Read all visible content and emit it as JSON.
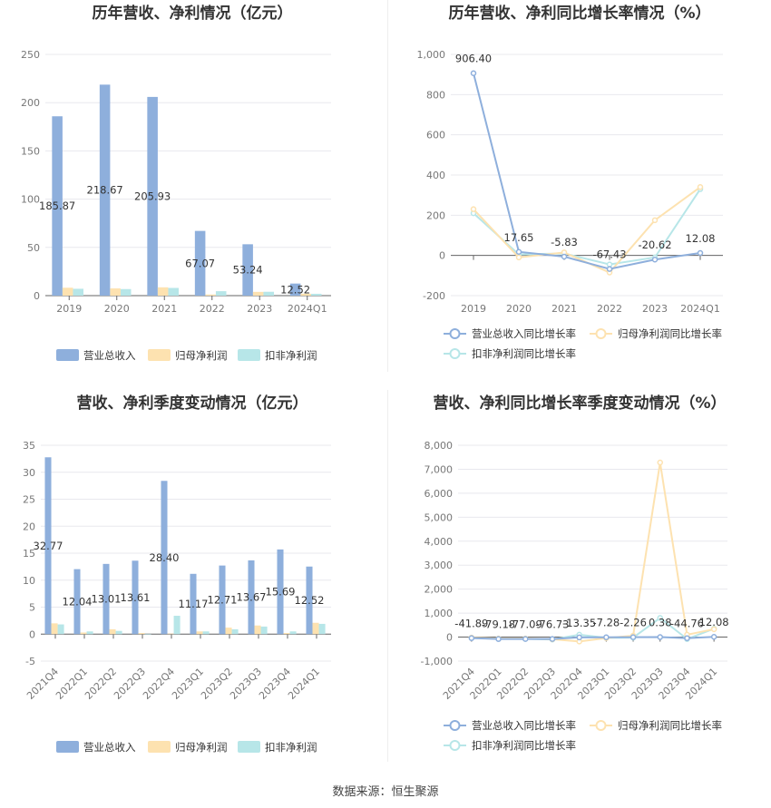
{
  "colors": {
    "revenue": "#8eafdc",
    "net": "#fde2b0",
    "deducted": "#b7e6e8",
    "grid": "#e8e8ee",
    "axis": "#666666"
  },
  "source": "数据来源：恒生聚源",
  "chart_data": [
    {
      "type": "bar",
      "title": "历年营收、净利情况（亿元）",
      "categories": [
        "2019",
        "2020",
        "2021",
        "2022",
        "2023",
        "2024Q1"
      ],
      "ylim": [
        0,
        250
      ],
      "yticks": [
        "0",
        "50",
        "100",
        "150",
        "200",
        "250"
      ],
      "series": [
        {
          "name": "营业总收入",
          "values": [
            185.87,
            218.67,
            205.93,
            67.07,
            53.24,
            12.52
          ],
          "labels": [
            "185.87",
            "218.67",
            "205.93",
            "67.07",
            "53.24",
            "12.52"
          ]
        },
        {
          "name": "归母净利润",
          "values": [
            8.2,
            7.5,
            8.6,
            1.2,
            3.9,
            2.0
          ]
        },
        {
          "name": "扣非净利润",
          "values": [
            7.1,
            6.8,
            8.0,
            4.6,
            4.0,
            1.9
          ]
        }
      ],
      "legend": "bottom"
    },
    {
      "type": "line",
      "title": "历年营收、净利同比增长率情况（%）",
      "categories": [
        "2019",
        "2020",
        "2021",
        "2022",
        "2023",
        "2024Q1"
      ],
      "ylim": [
        -200,
        1000
      ],
      "yticks": [
        "-200",
        "0",
        "200",
        "400",
        "600",
        "800",
        "1,000"
      ],
      "series": [
        {
          "name": "营业总收入同比增长率",
          "values": [
            906.4,
            17.65,
            -5.83,
            -67.43,
            -20.62,
            12.08
          ],
          "labels": [
            "906.40",
            "17.65",
            "-5.83",
            "-67.43",
            "-20.62",
            "12.08"
          ]
        },
        {
          "name": "归母净利润同比增长率",
          "values": [
            230,
            -10,
            15,
            -85,
            175,
            340
          ]
        },
        {
          "name": "扣非净利润同比增长率",
          "values": [
            210,
            5,
            10,
            -45,
            -10,
            330
          ]
        }
      ],
      "legend": "bottom"
    },
    {
      "type": "bar",
      "title": "营收、净利季度变动情况（亿元）",
      "categories": [
        "2021Q4",
        "2022Q1",
        "2022Q2",
        "2022Q3",
        "2022Q4",
        "2023Q1",
        "2023Q2",
        "2023Q3",
        "2023Q4",
        "2024Q1"
      ],
      "ylim": [
        -5,
        35
      ],
      "yticks": [
        "-5",
        "0",
        "5",
        "10",
        "15",
        "20",
        "25",
        "30",
        "35"
      ],
      "series": [
        {
          "name": "营业总收入",
          "values": [
            32.77,
            12.04,
            13.01,
            13.61,
            28.4,
            11.17,
            12.71,
            13.67,
            15.69,
            12.52
          ],
          "labels": [
            "32.77",
            "12.04",
            "13.01",
            "13.61",
            "28.40",
            "11.17",
            "12.71",
            "13.67",
            "15.69",
            "12.52"
          ]
        },
        {
          "name": "归母净利润",
          "values": [
            2.0,
            0.3,
            0.9,
            0.2,
            0.1,
            0.5,
            1.2,
            1.6,
            0.2,
            2.1
          ]
        },
        {
          "name": "扣非净利润",
          "values": [
            1.8,
            0.5,
            0.6,
            -0.1,
            3.4,
            0.5,
            0.9,
            1.4,
            0.5,
            1.9
          ]
        }
      ],
      "legend": "bottom"
    },
    {
      "type": "line",
      "title": "营收、净利同比增长率季度变动情况（%）",
      "categories": [
        "2021Q4",
        "2022Q1",
        "2022Q2",
        "2022Q3",
        "2022Q4",
        "2023Q1",
        "2023Q2",
        "2023Q3",
        "2023Q4",
        "2024Q1"
      ],
      "ylim": [
        -1000,
        8000
      ],
      "yticks": [
        "-1,000",
        "0",
        "1,000",
        "2,000",
        "3,000",
        "4,000",
        "5,000",
        "6,000",
        "7,000",
        "8,000"
      ],
      "series": [
        {
          "name": "营业总收入同比增长率",
          "values": [
            -41.89,
            -79.18,
            -77.09,
            -76.73,
            -13.35,
            -7.28,
            -2.26,
            0.38,
            -44.76,
            12.08
          ],
          "labels": [
            "-41.89",
            "-79.18",
            "-77.09",
            "-76.73",
            "-13.35",
            "-7.28",
            "-2.26",
            "0.38",
            "-44.76",
            "12.08"
          ]
        },
        {
          "name": "归母净利润同比增长率",
          "values": [
            -20,
            -60,
            -60,
            -90,
            -180,
            -40,
            60,
            7280,
            100,
            330
          ]
        },
        {
          "name": "扣非净利润同比增长率",
          "values": [
            -30,
            -70,
            -70,
            -100,
            100,
            -30,
            -20,
            800,
            -80,
            350
          ]
        }
      ],
      "legend": "bottom"
    }
  ]
}
